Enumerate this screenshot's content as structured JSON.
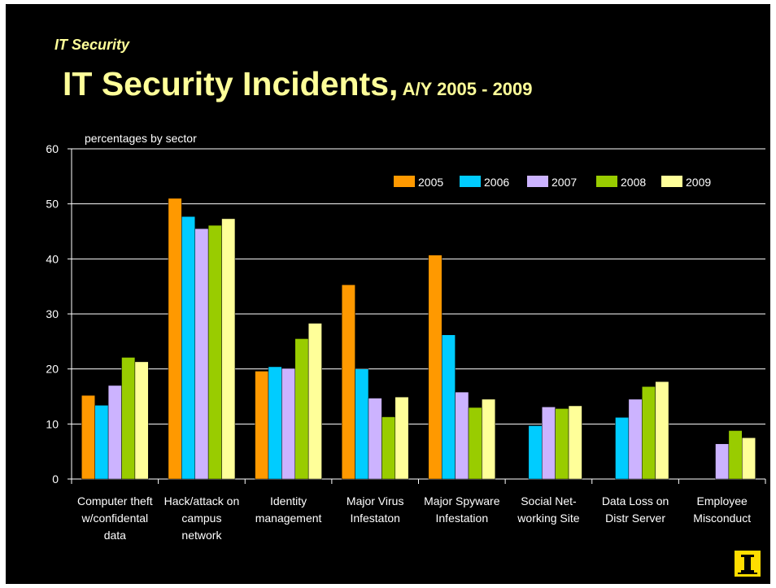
{
  "slide": {
    "kicker": "IT Security",
    "title_main": "IT Security Incidents,",
    "title_sub": " A/Y 2005 - 2009"
  },
  "colors": {
    "background": "#000000",
    "title": "#ffff99",
    "axis": "#ffffff",
    "logo_bg": "#ffdd00"
  },
  "chart_data": {
    "type": "bar",
    "ylabel": "percentages by sector",
    "ylim": [
      0,
      60
    ],
    "yticks": [
      0,
      10,
      20,
      30,
      40,
      50,
      60
    ],
    "grid": true,
    "legend_position": "top-right",
    "categories": [
      [
        "Computer theft",
        "w/confidental",
        "data"
      ],
      [
        "Hack/attack on",
        "campus",
        "network"
      ],
      [
        "Identity",
        "management"
      ],
      [
        "Major Virus",
        "Infestaton"
      ],
      [
        "Major Spyware",
        "Infestation"
      ],
      [
        "Social Net-",
        "working Site"
      ],
      [
        "Data Loss on",
        "Distr Server"
      ],
      [
        "Employee",
        "Misconduct"
      ]
    ],
    "series": [
      {
        "name": "2005",
        "color": "#ff9900",
        "values": [
          15.2,
          51.0,
          19.6,
          35.3,
          40.7,
          null,
          null,
          null
        ]
      },
      {
        "name": "2006",
        "color": "#00ccff",
        "values": [
          13.4,
          47.7,
          20.4,
          20.0,
          26.2,
          9.7,
          11.2,
          null
        ]
      },
      {
        "name": "2007",
        "color": "#ccb3ff",
        "values": [
          17.0,
          45.5,
          20.1,
          14.7,
          15.8,
          13.1,
          14.5,
          6.4
        ]
      },
      {
        "name": "2008",
        "color": "#99cc00",
        "values": [
          22.1,
          46.1,
          25.5,
          11.3,
          13.0,
          12.8,
          16.8,
          8.8
        ]
      },
      {
        "name": "2009",
        "color": "#ffff99",
        "values": [
          21.3,
          47.3,
          28.3,
          14.9,
          14.5,
          13.3,
          17.7,
          7.5
        ]
      }
    ]
  }
}
